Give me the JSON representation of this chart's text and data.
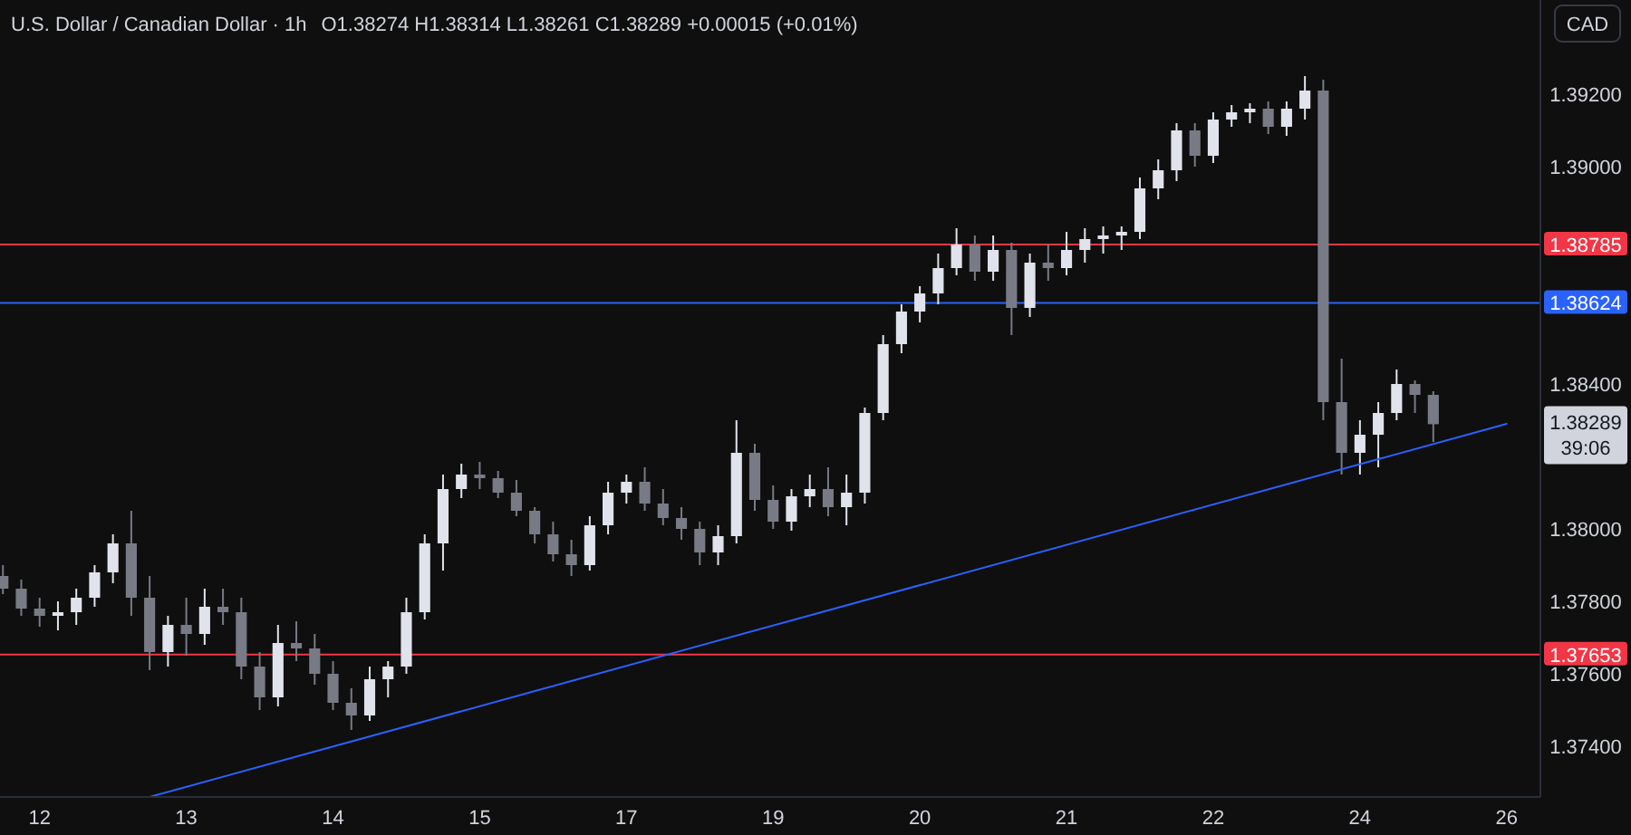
{
  "chart_data": {
    "type": "candlestick",
    "title": "U.S. Dollar / Canadian Dollar · 1h",
    "subtitle": "O1.38274  H1.38314  L1.38261  C1.38289  +0.00015 (+0.01%)",
    "categories": [
      null,
      null,
      "12",
      null,
      null,
      null,
      null,
      null,
      null,
      null,
      "13",
      null,
      null,
      null,
      null,
      null,
      null,
      null,
      "14",
      null,
      null,
      null,
      null,
      null,
      null,
      null,
      "15",
      null,
      null,
      null,
      null,
      null,
      null,
      null,
      "17",
      null,
      null,
      null,
      null,
      null,
      null,
      null,
      "19",
      null,
      null,
      null,
      null,
      null,
      null,
      null,
      "20",
      null,
      null,
      null,
      null,
      null,
      null,
      null,
      "21",
      null,
      null,
      null,
      null,
      null,
      null,
      null,
      "22",
      null,
      null,
      null,
      null,
      null,
      null,
      null,
      "24",
      null,
      null,
      null,
      null,
      null,
      null,
      null,
      "26"
    ],
    "series": [
      {
        "colors": [
          "#787b86",
          "#787b86",
          "#787b86",
          "#e0e3eb",
          "#e0e3eb",
          "#e0e3eb",
          "#e0e3eb",
          "#787b86",
          "#787b86",
          "#e0e3eb",
          "#787b86",
          "#e0e3eb",
          "#787b86",
          "#787b86",
          "#787b86",
          "#e0e3eb",
          "#787b86",
          "#787b86",
          "#787b86",
          "#787b86",
          "#e0e3eb",
          "#e0e3eb",
          "#e0e3eb",
          "#e0e3eb",
          "#e0e3eb",
          "#e0e3eb",
          "#787b86",
          "#787b86",
          "#787b86",
          "#787b86",
          "#787b86",
          "#787b86",
          "#e0e3eb",
          "#e0e3eb",
          "#e0e3eb",
          "#787b86",
          "#787b86",
          "#787b86",
          "#787b86",
          "#e0e3eb",
          "#e0e3eb",
          "#787b86",
          "#787b86",
          "#e0e3eb",
          "#e0e3eb",
          "#787b86",
          "#e0e3eb",
          "#e0e3eb",
          "#e0e3eb",
          "#e0e3eb",
          "#e0e3eb",
          "#e0e3eb",
          "#e0e3eb",
          "#787b86",
          "#e0e3eb",
          "#787b86",
          "#e0e3eb",
          "#787b86",
          "#e0e3eb",
          "#e0e3eb",
          "#e0e3eb",
          "#e0e3eb",
          "#e0e3eb",
          "#e0e3eb",
          "#e0e3eb",
          "#787b86",
          "#e0e3eb",
          "#e0e3eb",
          "#e0e3eb",
          "#787b86",
          "#e0e3eb",
          "#e0e3eb",
          "#787b86",
          "#787b86",
          "#e0e3eb",
          "#e0e3eb",
          "#e0e3eb",
          "#787b86",
          "#787b86",
          null,
          null,
          null,
          null
        ],
        "ohlc": [
          [
            1.3787,
            1.379,
            1.3782,
            1.37835
          ],
          [
            1.37835,
            1.3786,
            1.3776,
            1.3778
          ],
          [
            1.3778,
            1.3781,
            1.3773,
            1.3776
          ],
          [
            1.3776,
            1.378,
            1.3772,
            1.3777
          ],
          [
            1.3777,
            1.37835,
            1.37735,
            1.3781
          ],
          [
            1.3781,
            1.379,
            1.37785,
            1.3788
          ],
          [
            1.3788,
            1.37985,
            1.3785,
            1.3796
          ],
          [
            1.3796,
            1.3805,
            1.3776,
            1.3781
          ],
          [
            1.3781,
            1.3787,
            1.3761,
            1.3766
          ],
          [
            1.3766,
            1.3776,
            1.3762,
            1.37735
          ],
          [
            1.37735,
            1.3781,
            1.3765,
            1.3771
          ],
          [
            1.3771,
            1.37835,
            1.3768,
            1.37785
          ],
          [
            1.37785,
            1.37835,
            1.37735,
            1.3777
          ],
          [
            1.3777,
            1.3781,
            1.37585,
            1.3762
          ],
          [
            1.3762,
            1.3766,
            1.375,
            1.37535
          ],
          [
            1.37535,
            1.37735,
            1.3751,
            1.37685
          ],
          [
            1.37685,
            1.37745,
            1.37635,
            1.3767
          ],
          [
            1.3767,
            1.3771,
            1.3757,
            1.376
          ],
          [
            1.376,
            1.37635,
            1.375,
            1.3752
          ],
          [
            1.3752,
            1.3756,
            1.37445,
            1.37485
          ],
          [
            1.37485,
            1.3762,
            1.3747,
            1.37585
          ],
          [
            1.37585,
            1.37635,
            1.37535,
            1.3762
          ],
          [
            1.3762,
            1.3781,
            1.376,
            1.3777
          ],
          [
            1.3777,
            1.37985,
            1.3775,
            1.3796
          ],
          [
            1.3796,
            1.3815,
            1.37885,
            1.3811
          ],
          [
            1.3811,
            1.3818,
            1.38085,
            1.3815
          ],
          [
            1.3815,
            1.38185,
            1.3811,
            1.3814
          ],
          [
            1.3814,
            1.3816,
            1.38085,
            1.381
          ],
          [
            1.381,
            1.38135,
            1.38035,
            1.3805
          ],
          [
            1.3805,
            1.3806,
            1.3796,
            1.37985
          ],
          [
            1.37985,
            1.3802,
            1.3791,
            1.3793
          ],
          [
            1.3793,
            1.3797,
            1.3787,
            1.379
          ],
          [
            1.379,
            1.38035,
            1.37885,
            1.3801
          ],
          [
            1.3801,
            1.3813,
            1.37985,
            1.381
          ],
          [
            1.381,
            1.3815,
            1.3807,
            1.3813
          ],
          [
            1.3813,
            1.3817,
            1.3805,
            1.3807
          ],
          [
            1.3807,
            1.3811,
            1.3801,
            1.3803
          ],
          [
            1.3803,
            1.3806,
            1.3797,
            1.38
          ],
          [
            1.38,
            1.3802,
            1.379,
            1.37935
          ],
          [
            1.37935,
            1.3801,
            1.379,
            1.3798
          ],
          [
            1.3798,
            1.383,
            1.3796,
            1.3821
          ],
          [
            1.3821,
            1.38235,
            1.3805,
            1.3808
          ],
          [
            1.3808,
            1.3812,
            1.38,
            1.3802
          ],
          [
            1.3802,
            1.3811,
            1.37995,
            1.3809
          ],
          [
            1.3809,
            1.3815,
            1.3806,
            1.3811
          ],
          [
            1.3811,
            1.3817,
            1.38035,
            1.3806
          ],
          [
            1.3806,
            1.3815,
            1.3801,
            1.381
          ],
          [
            1.381,
            1.38335,
            1.3807,
            1.3832
          ],
          [
            1.3832,
            1.38535,
            1.383,
            1.3851
          ],
          [
            1.3851,
            1.3862,
            1.38485,
            1.386
          ],
          [
            1.386,
            1.3867,
            1.3857,
            1.3865
          ],
          [
            1.3865,
            1.3876,
            1.3862,
            1.3872
          ],
          [
            1.3872,
            1.3883,
            1.387,
            1.38785
          ],
          [
            1.38785,
            1.3881,
            1.38685,
            1.3871
          ],
          [
            1.3871,
            1.3881,
            1.38685,
            1.3877
          ],
          [
            1.3877,
            1.3879,
            1.38535,
            1.3861
          ],
          [
            1.3861,
            1.3876,
            1.38585,
            1.38735
          ],
          [
            1.38735,
            1.38785,
            1.38685,
            1.3872
          ],
          [
            1.3872,
            1.3882,
            1.387,
            1.3877
          ],
          [
            1.3877,
            1.3883,
            1.38735,
            1.388
          ],
          [
            1.388,
            1.38835,
            1.3876,
            1.3881
          ],
          [
            1.3881,
            1.38835,
            1.3877,
            1.3882
          ],
          [
            1.3882,
            1.3897,
            1.388,
            1.3894
          ],
          [
            1.3894,
            1.3902,
            1.3891,
            1.3899
          ],
          [
            1.3899,
            1.3912,
            1.3896,
            1.391
          ],
          [
            1.391,
            1.3912,
            1.39,
            1.3903
          ],
          [
            1.3903,
            1.3915,
            1.3901,
            1.3913
          ],
          [
            1.3913,
            1.3917,
            1.3911,
            1.3915
          ],
          [
            1.3915,
            1.39175,
            1.3912,
            1.3916
          ],
          [
            1.3916,
            1.3918,
            1.3909,
            1.3911
          ],
          [
            1.3911,
            1.3918,
            1.39085,
            1.3916
          ],
          [
            1.3916,
            1.3925,
            1.3913,
            1.3921
          ],
          [
            1.3921,
            1.3924,
            1.383,
            1.3835
          ],
          [
            1.3835,
            1.3847,
            1.3815,
            1.3821
          ],
          [
            1.3821,
            1.383,
            1.3815,
            1.3826
          ],
          [
            1.3826,
            1.3835,
            1.3817,
            1.3832
          ],
          [
            1.3832,
            1.3844,
            1.383,
            1.384
          ],
          [
            1.384,
            1.3841,
            1.3832,
            1.3837
          ],
          [
            1.3837,
            1.3838,
            1.3824,
            1.38289
          ],
          null,
          null,
          null,
          null
        ]
      },
      {
        "type": "line",
        "color": "#2962ff",
        "values": [
          null,
          null,
          null,
          null,
          null,
          null,
          null,
          null,
          1.3726,
          null,
          null,
          null,
          null,
          null,
          null,
          null,
          null,
          null,
          null,
          null,
          null,
          null,
          null,
          null,
          null,
          null,
          null,
          null,
          null,
          null,
          null,
          null,
          null,
          null,
          null,
          null,
          null,
          null,
          null,
          null,
          null,
          null,
          null,
          null,
          null,
          null,
          null,
          null,
          null,
          null,
          null,
          null,
          null,
          null,
          null,
          null,
          null,
          null,
          null,
          null,
          null,
          null,
          null,
          null,
          null,
          null,
          null,
          null,
          null,
          null,
          null,
          null,
          null,
          null,
          null,
          null,
          null,
          null,
          null,
          null,
          null,
          null,
          1.3829
        ]
      }
    ],
    "ylim": [
      1.3726,
      1.3946
    ],
    "yticks": [
      {
        "value": 1.374,
        "label": "1.37400"
      },
      {
        "value": 1.376,
        "label": "1.37600"
      },
      {
        "value": 1.378,
        "label": "1.37800"
      },
      {
        "value": 1.38,
        "label": "1.38000"
      },
      {
        "value": 1.384,
        "label": "1.38400"
      },
      {
        "value": 1.39,
        "label": "1.39000"
      },
      {
        "value": 1.392,
        "label": "1.39200"
      }
    ],
    "ref_lines": [
      {
        "axis": "y",
        "value": 1.38785,
        "label": "1.38785",
        "color": "#f23645"
      },
      {
        "axis": "y",
        "value": 1.38624,
        "label": "1.38624",
        "color": "#2962ff"
      },
      {
        "axis": "y",
        "value": 1.37653,
        "label": "1.37653",
        "color": "#f23645"
      }
    ],
    "annotations": [
      "1.38289",
      "39:06",
      "CAD"
    ]
  }
}
